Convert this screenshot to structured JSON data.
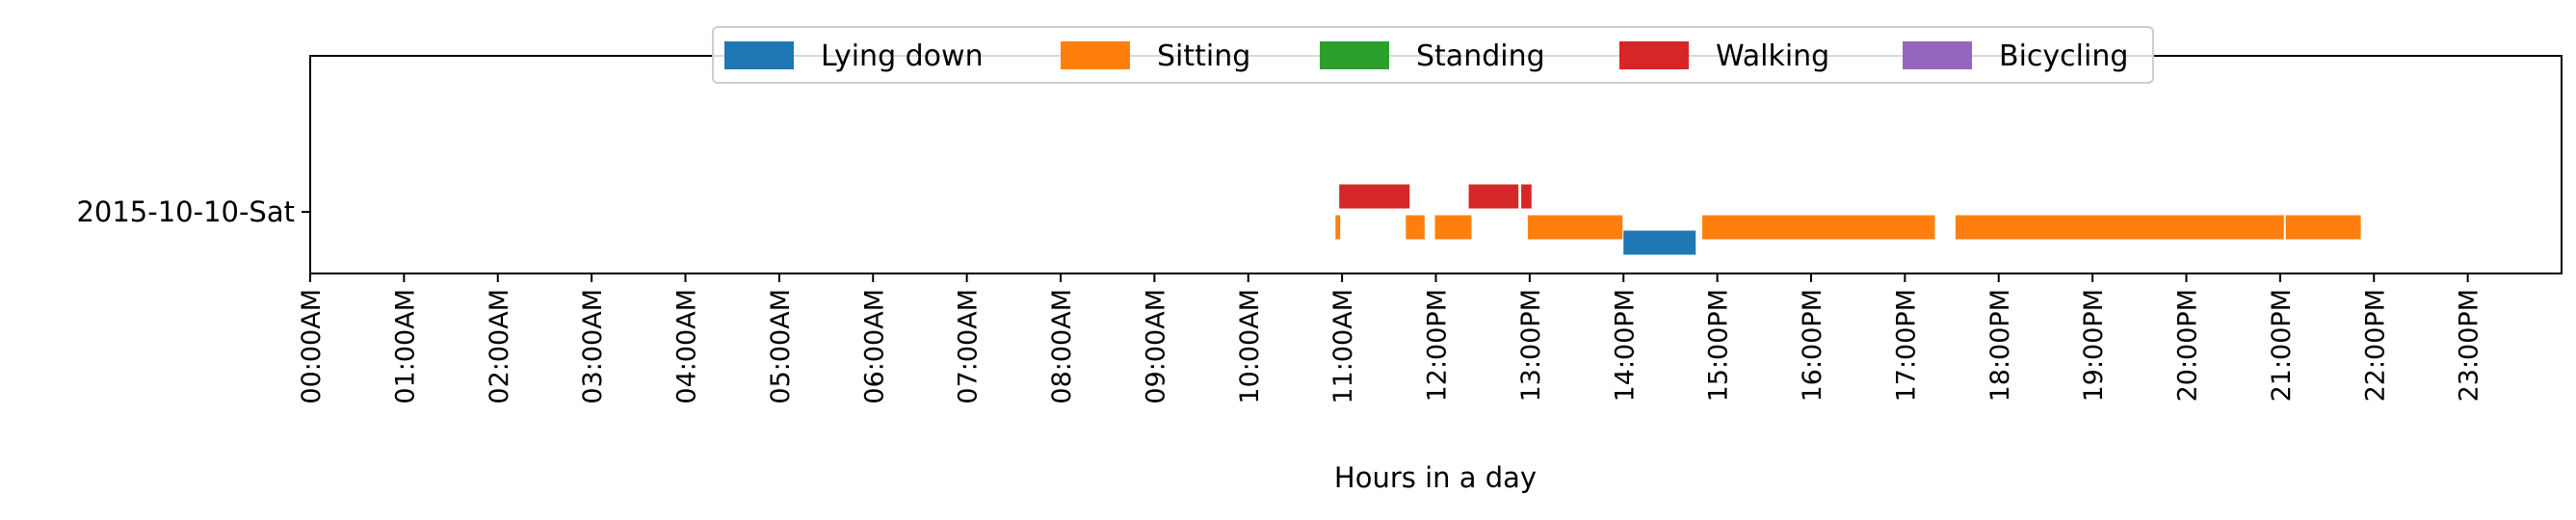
{
  "chart_data": {
    "type": "timeline",
    "xlabel": "Hours in a day",
    "xlim": [
      0,
      24
    ],
    "x_ticks": [
      "00:00AM",
      "01:00AM",
      "02:00AM",
      "03:00AM",
      "04:00AM",
      "05:00AM",
      "06:00AM",
      "07:00AM",
      "08:00AM",
      "09:00AM",
      "10:00AM",
      "11:00AM",
      "12:00PM",
      "13:00PM",
      "14:00PM",
      "15:00PM",
      "16:00PM",
      "17:00PM",
      "18:00PM",
      "19:00PM",
      "20:00PM",
      "21:00PM",
      "22:00PM",
      "23:00PM"
    ],
    "y_categories": [
      "2015-10-10-Sat"
    ],
    "legend_position": "top-center",
    "grid": false,
    "series": [
      {
        "name": "Lying down",
        "color": "#1f77b4",
        "intervals": [
          [
            14.0,
            14.77
          ]
        ]
      },
      {
        "name": "Sitting",
        "color": "#ff7f0e",
        "intervals": [
          [
            10.93,
            10.98
          ],
          [
            11.68,
            11.88
          ],
          [
            11.99,
            12.38
          ],
          [
            12.98,
            13.99
          ],
          [
            14.84,
            17.32
          ],
          [
            17.54,
            21.04
          ],
          [
            21.06,
            21.86
          ]
        ]
      },
      {
        "name": "Standing",
        "color": "#2ca02c",
        "intervals": []
      },
      {
        "name": "Walking",
        "color": "#d62728",
        "intervals": [
          [
            10.97,
            11.72
          ],
          [
            12.35,
            12.88
          ],
          [
            12.91,
            13.02
          ]
        ]
      },
      {
        "name": "Bicycling",
        "color": "#9467bd",
        "intervals": []
      }
    ]
  }
}
